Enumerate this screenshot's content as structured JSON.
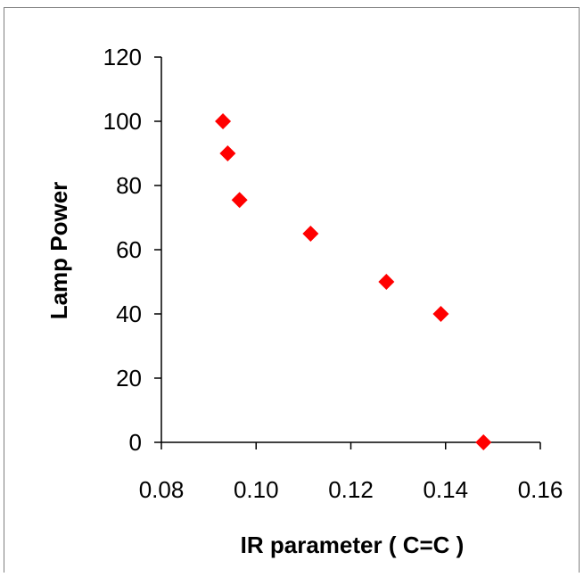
{
  "chart_data": {
    "type": "scatter",
    "title": "",
    "xlabel": "IR parameter ( C=C )",
    "ylabel": "Lamp Power",
    "xlim": [
      0.08,
      0.16
    ],
    "ylim": [
      0,
      120
    ],
    "x_ticks": [
      "0.08",
      "0.10",
      "0.12",
      "0.14",
      "0.16"
    ],
    "y_ticks": [
      "0",
      "20",
      "40",
      "60",
      "80",
      "100",
      "120"
    ],
    "grid": false,
    "legend": "none",
    "marker": "diamond",
    "marker_color": "#ff0000",
    "series": [
      {
        "points": [
          {
            "x": 0.093,
            "y": 100
          },
          {
            "x": 0.094,
            "y": 90
          },
          {
            "x": 0.0965,
            "y": 75.5
          },
          {
            "x": 0.1115,
            "y": 65
          },
          {
            "x": 0.1275,
            "y": 50
          },
          {
            "x": 0.139,
            "y": 40
          },
          {
            "x": 0.148,
            "y": 0
          }
        ]
      }
    ]
  }
}
